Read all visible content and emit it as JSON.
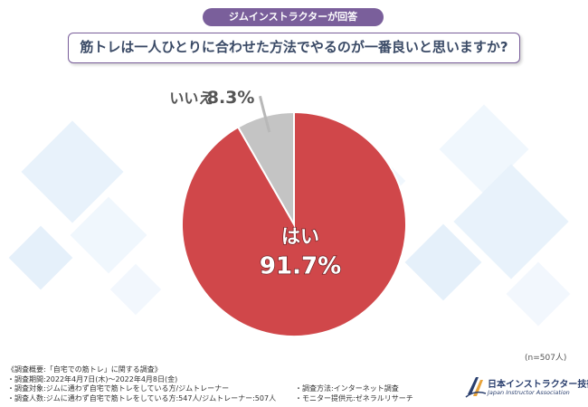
{
  "header": {
    "badge": "ジムインストラクターが回答",
    "question": "筋トレは一人ひとりに合わせた方法でやるのが一番良いと思いますか?"
  },
  "chart_data": {
    "type": "pie",
    "slices": [
      {
        "label": "はい",
        "value": 91.7,
        "value_text": "91.7%",
        "color": "#d0474a"
      },
      {
        "label": "いいえ",
        "value": 8.3,
        "value_text": "8.3%",
        "color": "#c4c4c4"
      }
    ],
    "n_label": "(n=507人)"
  },
  "footer": {
    "lines": [
      "《調査概要:「自宅での筋トレ」に関する調査》",
      "・調査期間:2022年4月7日(木)〜2022年4月8日(金)",
      "・調査対象:ジムに通わず自宅で筋トレをしている方/ジムトレーナー",
      "・調査人数:ジムに通わず自宅で筋トレをしている方:547人/ジムトレーナー:507人"
    ],
    "lines_right": [
      "・調査方法:インターネット調査",
      "・モニター提供元:ゼネラルリサーチ"
    ]
  },
  "logo": {
    "jp": "日本インストラクター技術協会",
    "en": "Japan Instructor Association",
    "color": "#2a3f6e"
  }
}
